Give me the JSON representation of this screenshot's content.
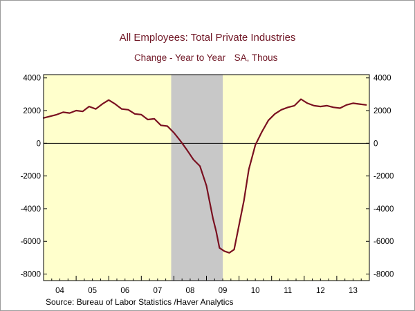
{
  "chart_data": {
    "type": "line",
    "title": "All Employees: Total Private Industries",
    "subtitle_left": "Change - Year to Year",
    "subtitle_right": "SA, Thous",
    "source": "Source:  Bureau of Labor Statistics /Haver Analytics",
    "xlim": [
      2004.0,
      2014.0
    ],
    "ylim": [
      -8400,
      4200
    ],
    "yticks": [
      4000,
      2000,
      0,
      -2000,
      -4000,
      -6000,
      -8000
    ],
    "xtick_labels": [
      "04",
      "05",
      "06",
      "07",
      "08",
      "09",
      "10",
      "11",
      "12",
      "13"
    ],
    "grid": false,
    "legend": "none",
    "recession": {
      "start": 2007.917,
      "end": 2009.5
    },
    "series": [
      {
        "color": "#7a1020",
        "x": [
          2004.0,
          2004.2,
          2004.4,
          2004.6,
          2004.8,
          2005.0,
          2005.2,
          2005.4,
          2005.6,
          2005.8,
          2006.0,
          2006.2,
          2006.4,
          2006.6,
          2006.8,
          2007.0,
          2007.2,
          2007.4,
          2007.6,
          2007.8,
          2008.0,
          2008.2,
          2008.4,
          2008.6,
          2008.8,
          2009.0,
          2009.1,
          2009.2,
          2009.3,
          2009.4,
          2009.55,
          2009.7,
          2009.85,
          2010.0,
          2010.15,
          2010.3,
          2010.5,
          2010.7,
          2010.9,
          2011.1,
          2011.3,
          2011.5,
          2011.7,
          2011.9,
          2012.1,
          2012.3,
          2012.5,
          2012.7,
          2012.9,
          2013.1,
          2013.3,
          2013.5,
          2013.7,
          2013.9
        ],
        "y": [
          1550,
          1650,
          1750,
          1900,
          1850,
          2000,
          1950,
          2250,
          2100,
          2400,
          2650,
          2400,
          2100,
          2050,
          1800,
          1750,
          1450,
          1500,
          1100,
          1050,
          650,
          150,
          -400,
          -1000,
          -1400,
          -2600,
          -3600,
          -4600,
          -5400,
          -6400,
          -6600,
          -6700,
          -6500,
          -5000,
          -3500,
          -1600,
          -100,
          700,
          1400,
          1800,
          2050,
          2200,
          2300,
          2700,
          2450,
          2300,
          2250,
          2300,
          2200,
          2150,
          2350,
          2450,
          2400,
          2350
        ]
      }
    ]
  }
}
